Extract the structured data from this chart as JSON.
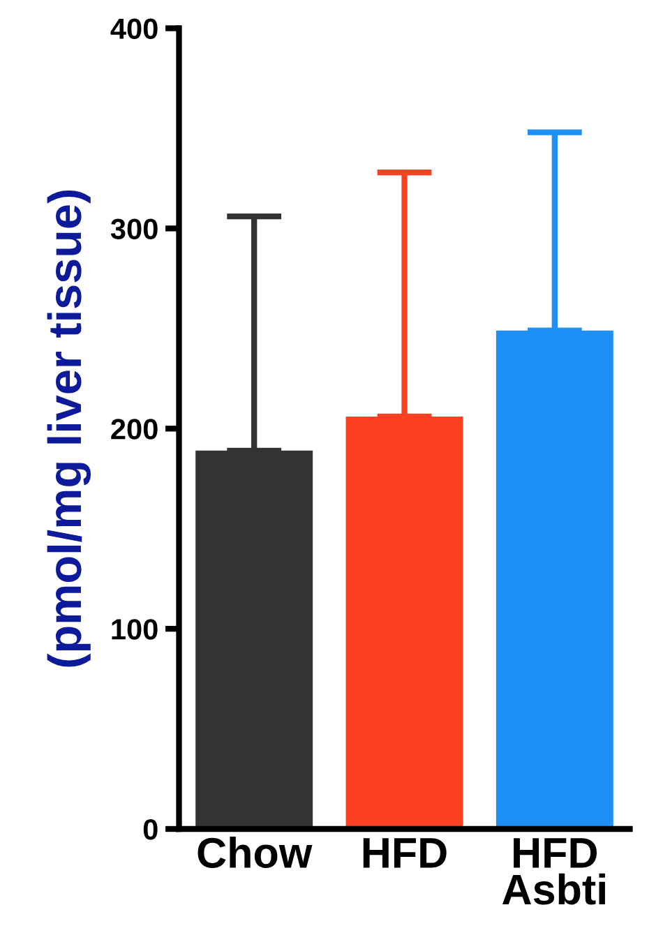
{
  "chart_data": {
    "type": "bar",
    "ylabel": "(pmol/mg liver tissue)",
    "categories": [
      "Chow",
      "HFD",
      "HFD\nAsbti"
    ],
    "values": [
      189,
      206,
      249
    ],
    "errors": [
      [
        189,
        306
      ],
      [
        206,
        328
      ],
      [
        249,
        348
      ]
    ],
    "colors": [
      "#333333",
      "#fc4023",
      "#1e8ff5"
    ],
    "ylim": [
      0,
      400
    ],
    "yticks": [
      0,
      100,
      200,
      300,
      400
    ],
    "grid": false,
    "legend": false
  }
}
